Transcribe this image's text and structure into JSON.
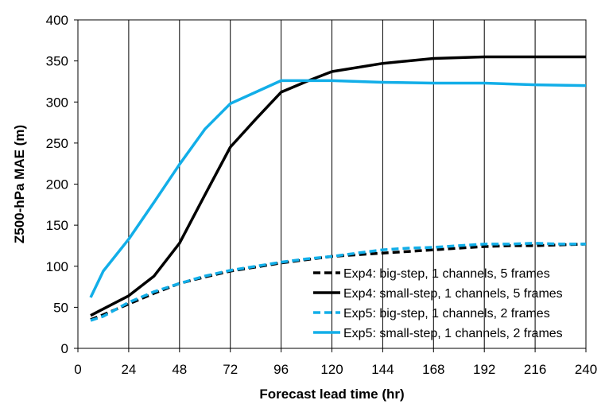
{
  "chart_data": {
    "type": "line",
    "xlabel": "Forecast lead time (hr)",
    "ylabel": "Z500-hPa MAE (m)",
    "xlim": [
      0,
      240
    ],
    "ylim": [
      0,
      400
    ],
    "xticks": [
      0,
      24,
      48,
      72,
      96,
      120,
      144,
      168,
      192,
      216,
      240
    ],
    "yticks": [
      0,
      50,
      100,
      150,
      200,
      250,
      300,
      350,
      400
    ],
    "legend_position": "bottom-right",
    "series": [
      {
        "name": "Exp4: big-step, 1 channels, 5 frames",
        "color": "#000000",
        "dash": "dashed",
        "x": [
          6,
          12,
          24,
          36,
          48,
          60,
          72,
          84,
          96,
          108,
          120,
          132,
          144,
          156,
          168,
          180,
          192,
          204,
          216,
          228,
          240
        ],
        "y": [
          35,
          41,
          54,
          67,
          79,
          87,
          94,
          99,
          104,
          108,
          112,
          114,
          116,
          118,
          120,
          122,
          124,
          125,
          125,
          126,
          127
        ]
      },
      {
        "name": "Exp4: small-step, 1 channels, 5 frames",
        "color": "#000000",
        "dash": "solid",
        "x": [
          6,
          12,
          24,
          36,
          48,
          60,
          72,
          84,
          96,
          108,
          120,
          144,
          168,
          192,
          216,
          240
        ],
        "y": [
          40,
          48,
          64,
          88,
          128,
          187,
          245,
          279,
          312,
          325,
          337,
          347,
          353,
          355,
          355,
          355
        ]
      },
      {
        "name": "Exp5: big-step, 1 channels, 2 frames",
        "color": "#12aee8",
        "dash": "dashed",
        "x": [
          6,
          12,
          24,
          36,
          48,
          60,
          72,
          84,
          96,
          108,
          120,
          132,
          144,
          156,
          168,
          180,
          192,
          204,
          216,
          228,
          240
        ],
        "y": [
          34,
          39,
          56,
          69,
          79,
          88,
          95,
          100,
          105,
          109,
          112,
          116,
          120,
          122,
          123,
          125,
          127,
          127,
          128,
          127,
          127
        ]
      },
      {
        "name": "Exp5: small-step, 1 channels, 2 frames",
        "color": "#12aee8",
        "dash": "solid",
        "x": [
          6,
          12,
          24,
          36,
          48,
          60,
          72,
          84,
          96,
          108,
          120,
          144,
          168,
          192,
          216,
          240
        ],
        "y": [
          62,
          94,
          133,
          178,
          224,
          267,
          298,
          312,
          326,
          326,
          326,
          324,
          323,
          323,
          321,
          320
        ]
      }
    ]
  }
}
